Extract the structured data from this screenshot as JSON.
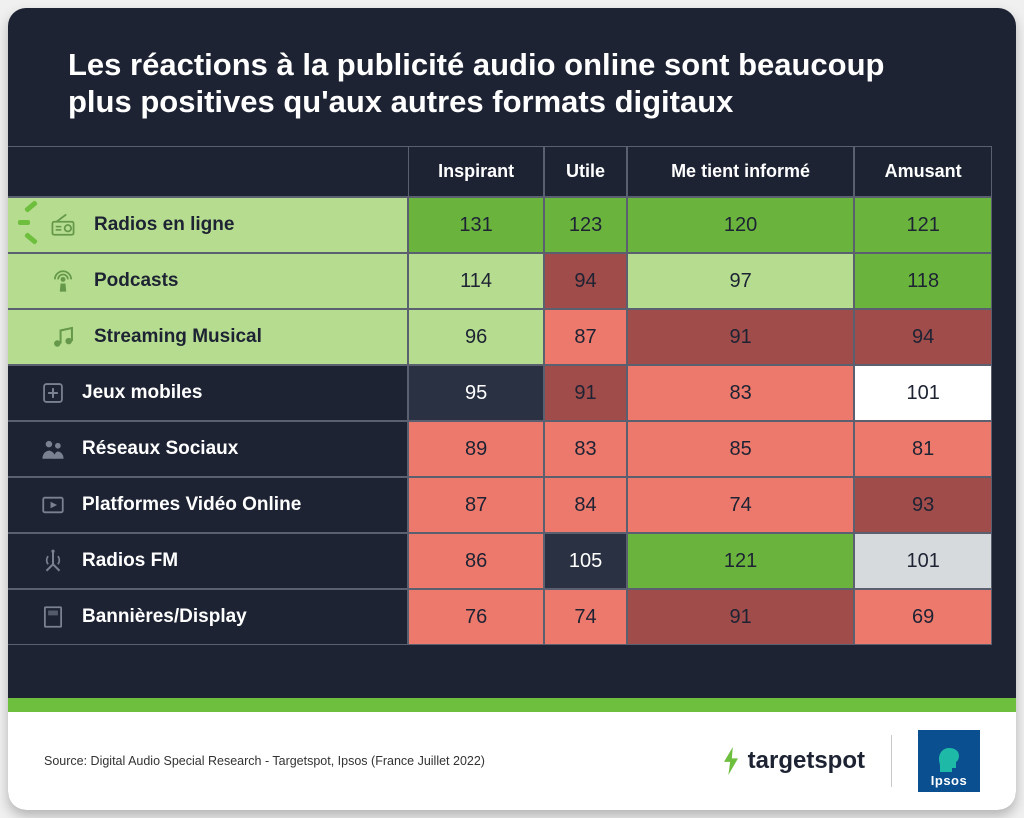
{
  "title": "Les réactions à la publicité audio online sont beaucoup plus positives qu'aux autres formats digitaux",
  "source": "Source: Digital Audio Special Research - Targetspot, Ipsos (France Juillet 2022)",
  "brand1": "targetspot",
  "brand2": "Ipsos",
  "colors": {
    "bg_dark": "#1d2333",
    "audio_row_bg": "#b6dd8f",
    "audio_row_text": "#1d2333",
    "plain_row_bg": "#1d2333",
    "plain_row_text": "#ffffff",
    "green_bright": "#6ab43e",
    "green_soft": "#b6dd8f",
    "salmon": "#ed796d",
    "brown": "#a04c4a",
    "white": "#ffffff",
    "grey": "#d6dadd",
    "dark_cell": "#2a3142",
    "icon_audio": "#65984a",
    "icon_grey": "#7a8190",
    "accent": "#6fbf3f",
    "border": "#5a6070"
  },
  "columns": [
    "Inspirant",
    "Utile",
    "Me tient informé",
    "Amusant"
  ],
  "rows": [
    {
      "label": "Radios en ligne",
      "audio": true,
      "icon": "radio",
      "cells": [
        {
          "v": 131,
          "c": "green_bright"
        },
        {
          "v": 123,
          "c": "green_bright"
        },
        {
          "v": 120,
          "c": "green_bright"
        },
        {
          "v": 121,
          "c": "green_bright"
        }
      ]
    },
    {
      "label": "Podcasts",
      "audio": true,
      "icon": "podcast",
      "cells": [
        {
          "v": 114,
          "c": "green_soft"
        },
        {
          "v": 94,
          "c": "brown"
        },
        {
          "v": 97,
          "c": "green_soft"
        },
        {
          "v": 118,
          "c": "green_bright"
        }
      ]
    },
    {
      "label": "Streaming Musical",
      "audio": true,
      "icon": "music",
      "cells": [
        {
          "v": 96,
          "c": "green_soft"
        },
        {
          "v": 87,
          "c": "salmon"
        },
        {
          "v": 91,
          "c": "brown"
        },
        {
          "v": 94,
          "c": "brown"
        }
      ]
    },
    {
      "label": "Jeux mobiles",
      "audio": false,
      "icon": "game",
      "cells": [
        {
          "v": 95,
          "c": "dark_cell",
          "tc": "#ffffff"
        },
        {
          "v": 91,
          "c": "brown"
        },
        {
          "v": 83,
          "c": "salmon"
        },
        {
          "v": 101,
          "c": "white"
        }
      ]
    },
    {
      "label": "Réseaux Sociaux",
      "audio": false,
      "icon": "social",
      "cells": [
        {
          "v": 89,
          "c": "salmon"
        },
        {
          "v": 83,
          "c": "salmon"
        },
        {
          "v": 85,
          "c": "salmon"
        },
        {
          "v": 81,
          "c": "salmon"
        }
      ]
    },
    {
      "label": "Platformes Vidéo Online",
      "audio": false,
      "icon": "video",
      "cells": [
        {
          "v": 87,
          "c": "salmon"
        },
        {
          "v": 84,
          "c": "salmon"
        },
        {
          "v": 74,
          "c": "salmon"
        },
        {
          "v": 93,
          "c": "brown"
        }
      ]
    },
    {
      "label": "Radios FM",
      "audio": false,
      "icon": "fm",
      "cells": [
        {
          "v": 86,
          "c": "salmon"
        },
        {
          "v": 105,
          "c": "dark_cell",
          "tc": "#ffffff"
        },
        {
          "v": 121,
          "c": "green_bright"
        },
        {
          "v": 101,
          "c": "grey"
        }
      ]
    },
    {
      "label": "Bannières/Display",
      "audio": false,
      "icon": "banner",
      "cells": [
        {
          "v": 76,
          "c": "salmon"
        },
        {
          "v": 74,
          "c": "salmon"
        },
        {
          "v": 91,
          "c": "brown"
        },
        {
          "v": 69,
          "c": "salmon"
        }
      ]
    }
  ]
}
